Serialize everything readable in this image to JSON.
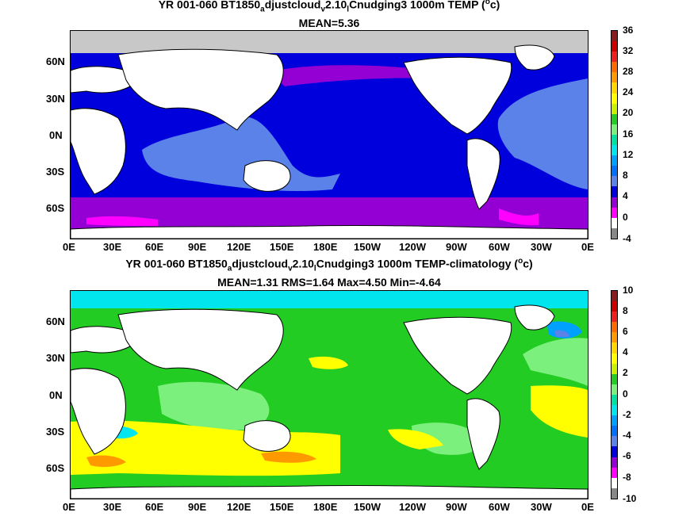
{
  "top": {
    "title": "YR 001-060 BT1850_adjustcloud_v2.10_lCnudging3 1000m TEMP (°c)",
    "title_parts": [
      "YR 001-060 BT1850",
      "a",
      "djustcloud",
      "v",
      "2.10",
      "l",
      "Cnudging3 1000m TEMP (",
      "o",
      "c)"
    ],
    "subtitle": "MEAN=5.36",
    "colorbar_labels": [
      "36",
      "32",
      "28",
      "24",
      "20",
      "16",
      "12",
      "8",
      "4",
      "0",
      "-4"
    ],
    "colorbar_colors": [
      "#8b1a1a",
      "#cc0000",
      "#ee2020",
      "#ff6a00",
      "#ff9900",
      "#ffd700",
      "#ffff00",
      "#c8f000",
      "#22cc22",
      "#7cf07c",
      "#00e0a0",
      "#00e5ee",
      "#00a0ff",
      "#0070ff",
      "#5a82e8",
      "#0000dd",
      "#9400d3",
      "#ff00ff",
      "#ffffff",
      "#888888"
    ]
  },
  "bottom": {
    "title": "YR 001-060 BT1850_adjustcloud_v2.10_lCnudging3 1000m TEMP-climatology (°c)",
    "title_parts": [
      "YR 001-060 BT1850",
      "a",
      "djustcloud",
      "v",
      "2.10",
      "l",
      "Cnudging3 1000m TEMP-climatology (",
      "o",
      "c)"
    ],
    "subtitle": "MEAN=1.31   RMS=1.64   Max=4.50   Min=-4.64",
    "colorbar_labels": [
      "10",
      "8",
      "6",
      "4",
      "2",
      "0",
      "-2",
      "-4",
      "-6",
      "-8",
      "-10"
    ],
    "colorbar_colors": [
      "#8b1a1a",
      "#cc0000",
      "#ee2020",
      "#ff6a00",
      "#ff9900",
      "#ffd700",
      "#ffff00",
      "#c8f000",
      "#22cc22",
      "#7cf07c",
      "#00e0a0",
      "#00e5ee",
      "#00a0ff",
      "#0070ff",
      "#5a82e8",
      "#0000dd",
      "#9400d3",
      "#ff00ff",
      "#ffffff",
      "#888888"
    ]
  },
  "lat_labels": [
    "60N",
    "30N",
    "0N",
    "30S",
    "60S"
  ],
  "lon_labels": [
    "0E",
    "30E",
    "60E",
    "90E",
    "120E",
    "150E",
    "180E",
    "150W",
    "120W",
    "90W",
    "60W",
    "30W",
    "0E"
  ]
}
